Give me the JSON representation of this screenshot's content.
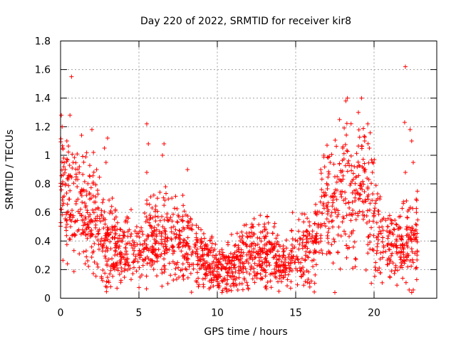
{
  "chart_data": {
    "type": "scatter",
    "title": "Day 220 of 2022, SRMTID for receiver kir8",
    "xlabel": "GPS time / hours",
    "ylabel": "SRMTID / TECUs",
    "xlim": [
      0,
      24
    ],
    "ylim": [
      0,
      1.8
    ],
    "xticks": [
      0,
      5,
      10,
      15,
      20
    ],
    "yticks": [
      0,
      0.2,
      0.4,
      0.6,
      0.8,
      1,
      1.2,
      1.4,
      1.6,
      1.8
    ],
    "xtick_labels": [
      "0",
      "5",
      "10",
      "15",
      "20"
    ],
    "ytick_labels": [
      "0",
      "0.2",
      "0.4",
      "0.6",
      "0.8",
      "1",
      "1.2",
      "1.4",
      "1.6",
      "1.8"
    ],
    "grid": true,
    "marker": "+",
    "color": "#ff0000",
    "profile": [
      [
        0,
        0.75
      ],
      [
        1,
        0.68
      ],
      [
        2,
        0.55
      ],
      [
        3,
        0.38
      ],
      [
        4,
        0.32
      ],
      [
        5,
        0.31
      ],
      [
        6,
        0.42
      ],
      [
        7,
        0.45
      ],
      [
        8,
        0.36
      ],
      [
        9,
        0.28
      ],
      [
        10,
        0.21
      ],
      [
        11,
        0.22
      ],
      [
        12,
        0.3
      ],
      [
        13,
        0.32
      ],
      [
        14,
        0.24
      ],
      [
        15,
        0.28
      ],
      [
        16,
        0.35
      ],
      [
        16.8,
        0.6
      ],
      [
        18,
        0.7
      ],
      [
        19,
        0.75
      ],
      [
        20,
        0.6
      ],
      [
        21,
        0.32
      ],
      [
        22,
        0.38
      ],
      [
        22.8,
        0.45
      ]
    ],
    "series": [
      {
        "name": "SRMTID",
        "points": [
          [
            0.05,
            1.28
          ],
          [
            0.1,
            1.2
          ],
          [
            0.15,
            1.05
          ],
          [
            0.2,
            0.98
          ],
          [
            0.3,
            0.9
          ],
          [
            0.4,
            1.1
          ],
          [
            0.6,
            1.28
          ],
          [
            0.7,
            1.55
          ],
          [
            0.8,
            0.95
          ],
          [
            1.0,
            0.85
          ],
          [
            1.2,
            0.92
          ],
          [
            1.5,
            0.75
          ],
          [
            2.0,
            1.18
          ],
          [
            2.1,
            1.02
          ],
          [
            2.3,
            0.9
          ],
          [
            2.8,
            1.05
          ],
          [
            3.0,
            1.12
          ],
          [
            2.9,
            0.95
          ],
          [
            3.3,
            0.7
          ],
          [
            3.5,
            0.62
          ],
          [
            3.2,
            0.08
          ],
          [
            3.6,
            0.07
          ],
          [
            4.5,
            0.62
          ],
          [
            5.5,
            1.22
          ],
          [
            5.6,
            1.08
          ],
          [
            5.5,
            0.88
          ],
          [
            6.5,
            1.0
          ],
          [
            6.6,
            1.08
          ],
          [
            6.7,
            0.78
          ],
          [
            6.6,
            0.65
          ],
          [
            7.1,
            0.7
          ],
          [
            7.5,
            0.58
          ],
          [
            7.8,
            0.72
          ],
          [
            8.1,
            0.9
          ],
          [
            9.5,
            0.12
          ],
          [
            10.0,
            0.09
          ],
          [
            10.5,
            0.07
          ],
          [
            11.0,
            0.1
          ],
          [
            12.3,
            0.5
          ],
          [
            13.5,
            0.38
          ],
          [
            14.8,
            0.6
          ],
          [
            15.2,
            0.55
          ],
          [
            16.0,
            0.12
          ],
          [
            16.2,
            0.52
          ],
          [
            16.6,
            0.9
          ],
          [
            16.8,
            1.0
          ],
          [
            17.0,
            1.07
          ],
          [
            17.2,
            0.95
          ],
          [
            17.5,
            0.85
          ],
          [
            17.8,
            1.25
          ],
          [
            18.0,
            1.05
          ],
          [
            18.2,
            1.38
          ],
          [
            18.3,
            1.4
          ],
          [
            18.6,
            0.82
          ],
          [
            18.8,
            0.22
          ],
          [
            19.0,
            1.3
          ],
          [
            19.2,
            1.4
          ],
          [
            19.4,
            1.1
          ],
          [
            19.6,
            1.22
          ],
          [
            19.7,
            1.05
          ],
          [
            19.9,
            0.95
          ],
          [
            20.3,
            0.45
          ],
          [
            20.0,
            0.58
          ],
          [
            21.0,
            0.15
          ],
          [
            22.0,
            1.62
          ],
          [
            21.95,
            1.23
          ],
          [
            22.0,
            0.88
          ],
          [
            22.3,
            1.18
          ],
          [
            22.4,
            1.1
          ],
          [
            22.5,
            0.95
          ],
          [
            22.7,
            0.6
          ],
          [
            22.6,
            0.45
          ],
          [
            22.2,
            0.3
          ],
          [
            22.5,
            0.25
          ],
          [
            17.5,
            0.04
          ],
          [
            22.4,
            0.04
          ]
        ]
      }
    ]
  }
}
